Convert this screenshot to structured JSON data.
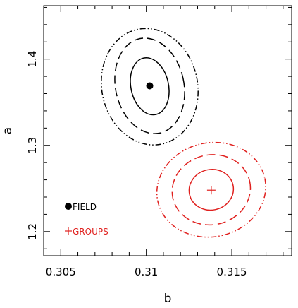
{
  "chart_data": {
    "type": "scatter",
    "xlabel": "b",
    "ylabel": "a",
    "xlim": [
      0.304,
      0.3185
    ],
    "ylim": [
      1.172,
      1.462
    ],
    "xticks": [
      0.305,
      0.31,
      0.315
    ],
    "xtick_labels": [
      "0.305",
      "0.31",
      "0.315"
    ],
    "yticks": [
      1.2,
      1.3,
      1.4
    ],
    "ytick_labels": [
      "1.2",
      "1.3",
      "1.4"
    ],
    "grid": false,
    "legend_position": "bottom-left",
    "series": [
      {
        "name": "FIELD",
        "color": "#000000",
        "marker": "filled-circle",
        "center": {
          "x": 0.3102,
          "y": 1.369
        },
        "confidence_contours": [
          {
            "style": "solid",
            "x_range": [
              0.3091,
              0.3113
            ],
            "y_range": [
              1.335,
              1.402
            ]
          },
          {
            "style": "dashed",
            "x_range": [
              0.3082,
              0.3122
            ],
            "y_range": [
              1.313,
              1.425
            ]
          },
          {
            "style": "dash-dot-dot",
            "x_range": [
              0.3074,
              0.313
            ],
            "y_range": [
              1.3,
              1.436
            ]
          }
        ]
      },
      {
        "name": "GROUPS",
        "color": "#e0201e",
        "marker": "plus",
        "center": {
          "x": 0.3138,
          "y": 1.248
        },
        "confidence_contours": [
          {
            "style": "solid",
            "x_range": [
              0.3125,
              0.3151
            ],
            "y_range": [
              1.225,
              1.272
            ]
          },
          {
            "style": "dashed",
            "x_range": [
              0.3115,
              0.3161
            ],
            "y_range": [
              1.208,
              1.289
            ]
          },
          {
            "style": "dash-dot-dot",
            "x_range": [
              0.3106,
              0.317
            ],
            "y_range": [
              1.194,
              1.303
            ]
          }
        ]
      }
    ]
  }
}
